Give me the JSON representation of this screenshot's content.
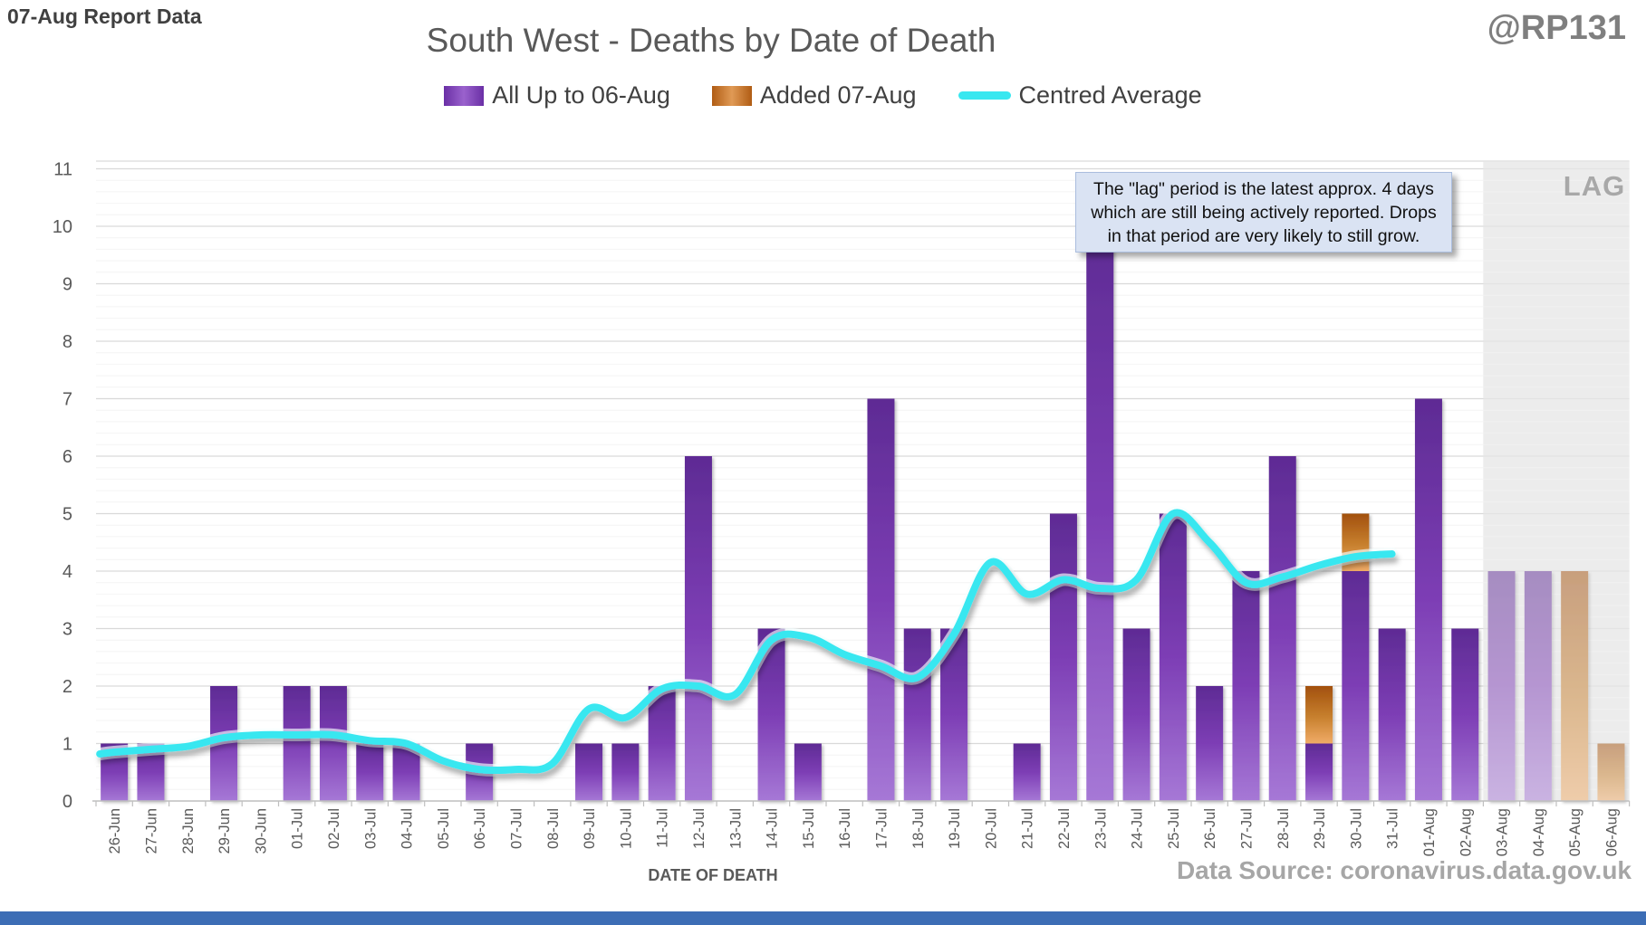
{
  "header": {
    "report_label": "07-Aug Report Data",
    "title": "South West - Deaths by Date of Death",
    "watermark": "@RP131"
  },
  "annotations": {
    "tooltip": {
      "line1": "The \"lag\" period is the latest approx. 4 days",
      "line2": "which are still being actively reported.  Drops",
      "line3": "in that period are very likely to still grow."
    }
  },
  "footer": {
    "data_source": "Data Source: coronavirus.data.gov.uk"
  },
  "colors": {
    "purple_top": "#5e2b94",
    "purple_mid": "#7d3eb5",
    "purple_bottom": "#a678d6",
    "orange_top": "#a2500e",
    "orange_mid": "#c8812f",
    "orange_bottom": "#f0ab67",
    "line_cyan": "#38e7f0",
    "lag_band": "#ebebeb",
    "grid_major": "#d9d9d9",
    "grid_minor": "#f4f4f4",
    "axis_text": "#595959",
    "baseline": "#bfbfbf",
    "tooltip_bg": "#dae3f3",
    "bottom_strip": "#3c6db5"
  },
  "chart_data": {
    "type": "bar",
    "title": "South West - Deaths by Date of Death",
    "xlabel": "DATE OF DEATH",
    "ylabel": "",
    "ylim": [
      0,
      11
    ],
    "ytick_step": 1,
    "minor_grid_step": 0.2,
    "grid": "major+minor",
    "legend_position": "top",
    "categories": [
      "26-Jun",
      "27-Jun",
      "28-Jun",
      "29-Jun",
      "30-Jun",
      "01-Jul",
      "02-Jul",
      "03-Jul",
      "04-Jul",
      "05-Jul",
      "06-Jul",
      "07-Jul",
      "08-Jul",
      "09-Jul",
      "10-Jul",
      "11-Jul",
      "12-Jul",
      "13-Jul",
      "14-Jul",
      "15-Jul",
      "16-Jul",
      "17-Jul",
      "18-Jul",
      "19-Jul",
      "20-Jul",
      "21-Jul",
      "22-Jul",
      "23-Jul",
      "24-Jul",
      "25-Jul",
      "26-Jul",
      "27-Jul",
      "28-Jul",
      "29-Jul",
      "30-Jul",
      "31-Jul",
      "01-Aug",
      "02-Aug",
      "03-Aug",
      "04-Aug",
      "05-Aug",
      "06-Aug"
    ],
    "series": [
      {
        "name": "All Up to 06-Aug",
        "type": "bar",
        "stack": "deaths",
        "color": "#7030a0",
        "values": [
          1,
          1,
          0,
          2,
          0,
          2,
          2,
          1,
          1,
          0,
          1,
          0,
          0,
          1,
          1,
          2,
          6,
          0,
          3,
          1,
          0,
          7,
          3,
          3,
          0,
          1,
          5,
          10,
          3,
          5,
          2,
          4,
          6,
          1,
          4,
          3,
          7,
          3,
          4,
          4,
          0,
          0
        ]
      },
      {
        "name": "Added 07-Aug",
        "type": "bar",
        "stack": "deaths",
        "color": "#c55a11",
        "values": [
          0,
          0,
          0,
          0,
          0,
          0,
          0,
          0,
          0,
          0,
          0,
          0,
          0,
          0,
          0,
          0,
          0,
          0,
          0,
          0,
          0,
          0,
          0,
          0,
          0,
          0,
          0,
          0,
          0,
          0,
          0,
          0,
          0,
          1,
          1,
          0,
          0,
          0,
          0,
          0,
          4,
          1
        ]
      },
      {
        "name": "Centred Average",
        "type": "line",
        "color": "#38e7f0",
        "values": [
          0.85,
          0.9,
          0.95,
          1.1,
          1.15,
          1.15,
          1.15,
          1.05,
          1.0,
          0.7,
          0.55,
          0.55,
          0.65,
          1.6,
          1.45,
          1.95,
          2.0,
          1.85,
          2.8,
          2.85,
          2.55,
          2.35,
          2.15,
          2.9,
          4.15,
          3.6,
          3.85,
          3.7,
          3.85,
          5.0,
          4.5,
          3.8,
          3.9,
          4.1,
          4.25,
          4.3,
          null,
          null,
          null,
          null,
          null,
          null
        ]
      }
    ],
    "lag_region": {
      "label": "LAG",
      "start_category": "03-Aug",
      "end_category": "06-Aug"
    }
  }
}
